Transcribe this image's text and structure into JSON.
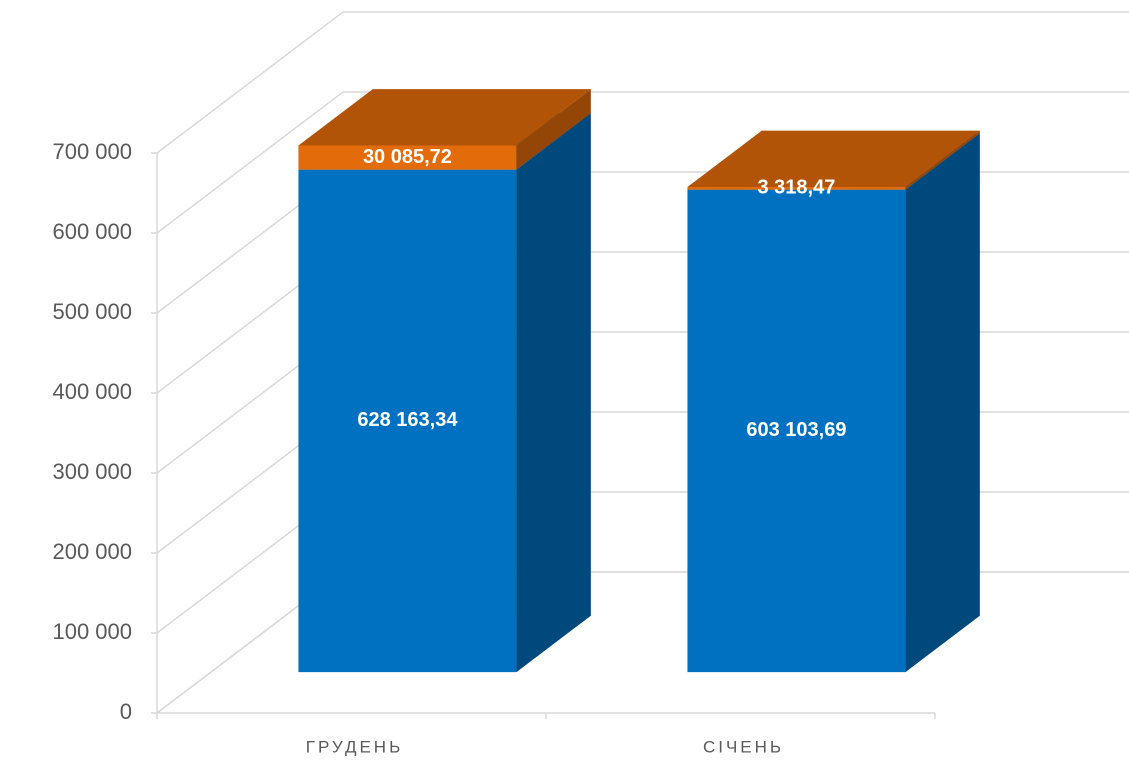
{
  "chart_data": {
    "type": "bar3d_stacked",
    "categories": [
      "ГРУДЕНЬ",
      "СІЧЕНЬ"
    ],
    "series": [
      {
        "color": "#0070c0",
        "values": [
          628163.34,
          603103.69
        ],
        "value_labels": [
          "628 163,34",
          "603 103,69"
        ]
      },
      {
        "color": "#e36c0a",
        "values": [
          30085.72,
          3318.47
        ],
        "value_labels": [
          "30 085,72",
          "3 318,47"
        ]
      }
    ],
    "ylim": [
      0,
      700000
    ],
    "yticks": [
      0,
      {
        "value": 100000,
        "label": "100 000"
      },
      {
        "value": 200000,
        "label": "200 000"
      },
      {
        "value": 300000,
        "label": "300 000"
      },
      {
        "value": 400000,
        "label": "400 000"
      },
      {
        "value": 500000,
        "label": "500 000"
      },
      {
        "value": 600000,
        "label": "600 000"
      },
      {
        "value": 700000,
        "label": "700 000"
      }
    ],
    "grid": true
  }
}
